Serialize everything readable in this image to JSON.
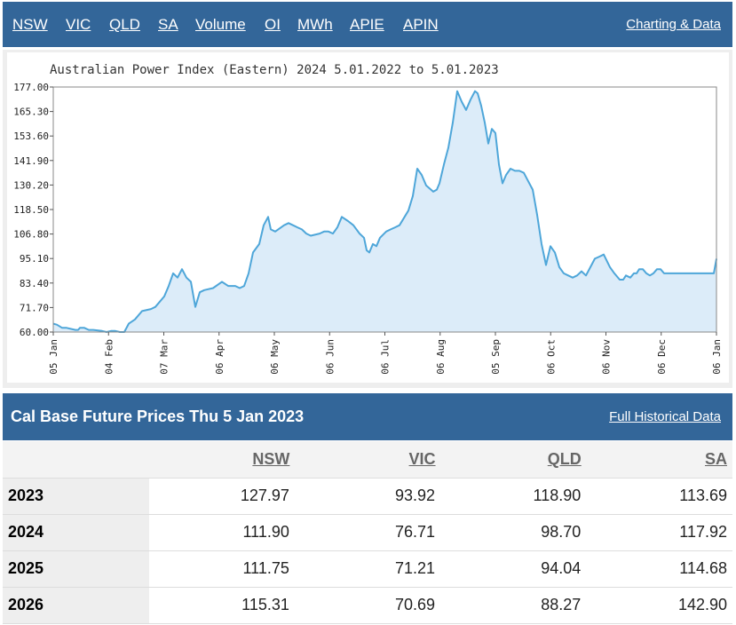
{
  "nav": {
    "links": [
      "NSW",
      "VIC",
      "QLD",
      "SA",
      "Volume",
      "OI",
      "MWh",
      "APIE",
      "APIN"
    ],
    "right_link": "Charting & Data"
  },
  "chart_data": {
    "type": "area",
    "title": "Australian Power Index (Eastern) 2024 5.01.2022 to 5.01.2023",
    "x_labels": [
      "05 Jan",
      "04 Feb",
      "07 Mar",
      "06 Apr",
      "06 May",
      "06 Jun",
      "06 Jul",
      "06 Aug",
      "05 Sep",
      "06 Oct",
      "06 Nov",
      "06 Dec",
      "06 Jan"
    ],
    "y_ticks": [
      "177.00",
      "165.30",
      "153.60",
      "141.90",
      "130.20",
      "118.50",
      "106.80",
      "95.10",
      "83.40",
      "71.70",
      "60.00"
    ],
    "ylim": [
      60.0,
      177.0
    ],
    "grid": false,
    "colors": {
      "line": "#4ea6d9",
      "fill": "#dcecf9"
    },
    "series": [
      {
        "values": [
          [
            0,
            64
          ],
          [
            4,
            63.5
          ],
          [
            10,
            62
          ],
          [
            15,
            62
          ],
          [
            20,
            61.5
          ],
          [
            25,
            61
          ],
          [
            28,
            61
          ],
          [
            30,
            62
          ],
          [
            35,
            62
          ],
          [
            40,
            61
          ],
          [
            45,
            61
          ],
          [
            55,
            60.5
          ],
          [
            60,
            60
          ],
          [
            65,
            60.5
          ],
          [
            70,
            60.5
          ],
          [
            75,
            60
          ],
          [
            80,
            60
          ],
          [
            85,
            64
          ],
          [
            92,
            66
          ],
          [
            100,
            70
          ],
          [
            110,
            71
          ],
          [
            115,
            72
          ],
          [
            125,
            77
          ],
          [
            130,
            82
          ],
          [
            135,
            88
          ],
          [
            140,
            86
          ],
          [
            145,
            90
          ],
          [
            150,
            86
          ],
          [
            155,
            84
          ],
          [
            160,
            72
          ],
          [
            165,
            79
          ],
          [
            170,
            80
          ],
          [
            180,
            81
          ],
          [
            190,
            84
          ],
          [
            197,
            82
          ],
          [
            205,
            82
          ],
          [
            210,
            81
          ],
          [
            215,
            82
          ],
          [
            220,
            88
          ],
          [
            225,
            98
          ],
          [
            232,
            102
          ],
          [
            237,
            111
          ],
          [
            242,
            115
          ],
          [
            245,
            109
          ],
          [
            250,
            108
          ],
          [
            260,
            111
          ],
          [
            265,
            112
          ],
          [
            270,
            111
          ],
          [
            275,
            110
          ],
          [
            280,
            109
          ],
          [
            285,
            107
          ],
          [
            290,
            106
          ],
          [
            300,
            107
          ],
          [
            305,
            108
          ],
          [
            310,
            108
          ],
          [
            315,
            107
          ],
          [
            320,
            110
          ],
          [
            325,
            115
          ],
          [
            332,
            113
          ],
          [
            338,
            111
          ],
          [
            345,
            107
          ],
          [
            350,
            105
          ],
          [
            353,
            99
          ],
          [
            356,
            98
          ],
          [
            360,
            102
          ],
          [
            364,
            101
          ],
          [
            368,
            105
          ],
          [
            375,
            108
          ],
          [
            380,
            109
          ],
          [
            385,
            110
          ],
          [
            390,
            111
          ],
          [
            400,
            118
          ],
          [
            405,
            125
          ],
          [
            410,
            138
          ],
          [
            415,
            135
          ],
          [
            420,
            130
          ],
          [
            428,
            127
          ],
          [
            432,
            128
          ],
          [
            435,
            131
          ],
          [
            440,
            140
          ],
          [
            445,
            148
          ],
          [
            450,
            160
          ],
          [
            455,
            175
          ],
          [
            460,
            170
          ],
          [
            465,
            166
          ],
          [
            470,
            171
          ],
          [
            475,
            175
          ],
          [
            478,
            174
          ],
          [
            482,
            168
          ],
          [
            486,
            160
          ],
          [
            490,
            150
          ],
          [
            494,
            157
          ],
          [
            498,
            155
          ],
          [
            502,
            140
          ],
          [
            506,
            131
          ],
          [
            510,
            135
          ],
          [
            515,
            138
          ],
          [
            520,
            137
          ],
          [
            525,
            137
          ],
          [
            530,
            136
          ],
          [
            535,
            132
          ],
          [
            540,
            128
          ],
          [
            545,
            116
          ],
          [
            550,
            102
          ],
          [
            555,
            92
          ],
          [
            560,
            101
          ],
          [
            565,
            98
          ],
          [
            570,
            91
          ],
          [
            575,
            88
          ],
          [
            580,
            87
          ],
          [
            585,
            86
          ],
          [
            590,
            87
          ],
          [
            595,
            89
          ],
          [
            600,
            87
          ],
          [
            605,
            91
          ],
          [
            610,
            95
          ],
          [
            615,
            96
          ],
          [
            620,
            97
          ],
          [
            627,
            91
          ],
          [
            632,
            88
          ],
          [
            638,
            85
          ],
          [
            642,
            85
          ],
          [
            645,
            87
          ],
          [
            650,
            86
          ],
          [
            654,
            88
          ],
          [
            657,
            88
          ],
          [
            660,
            90
          ],
          [
            664,
            90
          ],
          [
            668,
            88
          ],
          [
            672,
            87
          ],
          [
            676,
            88
          ],
          [
            680,
            90
          ],
          [
            684,
            90
          ],
          [
            688,
            88
          ],
          [
            692,
            88
          ],
          [
            696,
            88
          ],
          [
            700,
            88
          ],
          [
            704,
            88
          ],
          [
            708,
            88
          ],
          [
            712,
            88
          ],
          [
            716,
            88
          ],
          [
            720,
            88
          ],
          [
            724,
            88
          ],
          [
            728,
            88
          ],
          [
            733,
            88
          ],
          [
            737,
            88
          ],
          [
            741,
            88
          ],
          [
            744,
            88
          ],
          [
            747,
            95
          ]
        ]
      }
    ]
  },
  "table": {
    "title": "Cal Base Future Prices Thu 5 Jan 2023",
    "link": "Full Historical Data",
    "columns": [
      "NSW",
      "VIC",
      "QLD",
      "SA"
    ],
    "rows": [
      {
        "year": "2023",
        "values": [
          "127.97",
          "93.92",
          "118.90",
          "113.69"
        ]
      },
      {
        "year": "2024",
        "values": [
          "111.90",
          "76.71",
          "98.70",
          "117.92"
        ]
      },
      {
        "year": "2025",
        "values": [
          "111.75",
          "71.21",
          "94.04",
          "114.68"
        ]
      },
      {
        "year": "2026",
        "values": [
          "115.31",
          "70.69",
          "88.27",
          "142.90"
        ]
      }
    ]
  }
}
